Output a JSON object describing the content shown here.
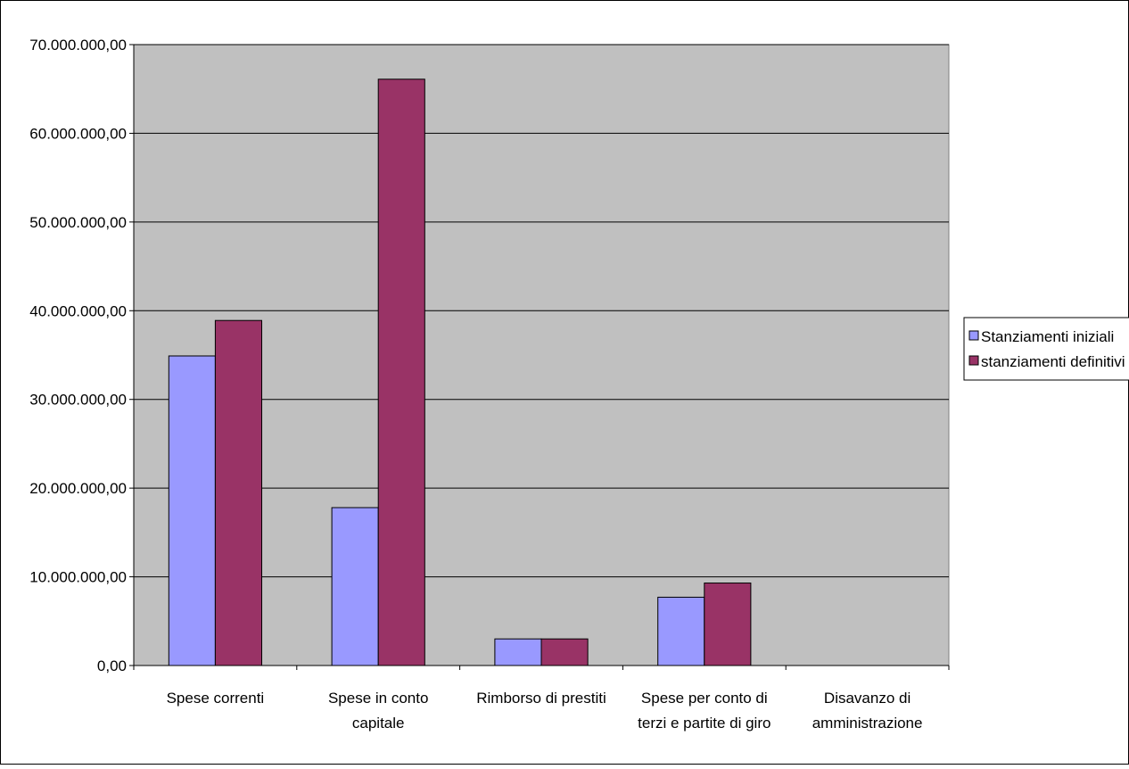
{
  "chart_data": {
    "type": "bar",
    "categories": [
      [
        "Spese correnti"
      ],
      [
        "Spese in conto",
        "capitale"
      ],
      [
        "Rimborso di prestiti"
      ],
      [
        "Spese per conto di",
        "terzi e partite di giro"
      ],
      [
        "Disavanzo di",
        "amministrazione"
      ]
    ],
    "series": [
      {
        "name": "Stanziamenti iniziali",
        "color": "#9999ff",
        "values": [
          34900000,
          17800000,
          3000000,
          7700000,
          0
        ]
      },
      {
        "name": "stanziamenti definitivi",
        "color": "#993366",
        "values": [
          38900000,
          66100000,
          3000000,
          9300000,
          0
        ]
      }
    ],
    "ylim": [
      0,
      70000000
    ],
    "yticks": [
      "0,00",
      "10.000.000,00",
      "20.000.000,00",
      "30.000.000,00",
      "40.000.000,00",
      "50.000.000,00",
      "60.000.000,00",
      "70.000.000,00"
    ],
    "grid": true,
    "legend_position": "right",
    "plot_background": "#c0c0c0",
    "title": "",
    "xlabel": "",
    "ylabel": ""
  }
}
